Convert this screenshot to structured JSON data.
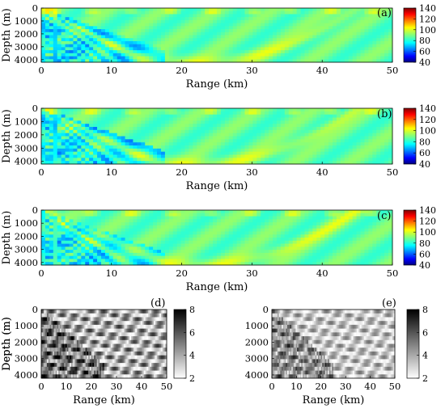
{
  "chart_data": [
    {
      "type": "heatmap",
      "panel_label": "(a)",
      "xlabel": "Range (km)",
      "ylabel": "Depth (m)",
      "xlim": [
        0,
        50
      ],
      "ylim": [
        0,
        4200
      ],
      "x_ticks": [
        0,
        10,
        20,
        30,
        40,
        50
      ],
      "y_ticks": [
        0,
        1000,
        2000,
        3000,
        4000
      ],
      "colorbar": {
        "colormap": "jet",
        "range": [
          40,
          140
        ],
        "ticks": [
          40,
          60,
          80,
          100,
          120,
          140
        ]
      }
    },
    {
      "type": "heatmap",
      "panel_label": "(b)",
      "xlabel": "Range (km)",
      "ylabel": "Depth (m)",
      "xlim": [
        0,
        50
      ],
      "ylim": [
        0,
        4200
      ],
      "x_ticks": [
        0,
        10,
        20,
        30,
        40,
        50
      ],
      "y_ticks": [
        0,
        1000,
        2000,
        3000,
        4000
      ],
      "colorbar": {
        "colormap": "jet",
        "range": [
          40,
          140
        ],
        "ticks": [
          40,
          60,
          80,
          100,
          120,
          140
        ]
      }
    },
    {
      "type": "heatmap",
      "panel_label": "(c)",
      "xlabel": "Range (km)",
      "ylabel": "Depth (m)",
      "xlim": [
        0,
        50
      ],
      "ylim": [
        0,
        4200
      ],
      "x_ticks": [
        0,
        10,
        20,
        30,
        40,
        50
      ],
      "y_ticks": [
        0,
        1000,
        2000,
        3000,
        4000
      ],
      "colorbar": {
        "colormap": "jet",
        "range": [
          40,
          140
        ],
        "ticks": [
          40,
          60,
          80,
          100,
          120,
          140
        ]
      }
    },
    {
      "type": "heatmap",
      "panel_label": "(d)",
      "xlabel": "Range (km)",
      "ylabel": "Depth (m)",
      "xlim": [
        0,
        50
      ],
      "ylim": [
        0,
        4200
      ],
      "x_ticks": [
        0,
        10,
        20,
        30,
        40,
        50
      ],
      "y_ticks": [
        0,
        1000,
        2000,
        3000,
        4000
      ],
      "colorbar": {
        "colormap": "gray-reversed",
        "range": [
          2,
          8
        ],
        "ticks": [
          2,
          4,
          6,
          8
        ]
      }
    },
    {
      "type": "heatmap",
      "panel_label": "(e)",
      "xlabel": "Range (km)",
      "ylabel": "Depth (m)",
      "xlim": [
        0,
        50
      ],
      "ylim": [
        0,
        4200
      ],
      "x_ticks": [
        0,
        10,
        20,
        30,
        40,
        50
      ],
      "y_ticks": [
        0,
        1000,
        2000,
        3000,
        4000
      ],
      "colorbar": {
        "colormap": "gray-reversed",
        "range": [
          2,
          8
        ],
        "ticks": [
          2,
          4,
          6,
          8
        ]
      }
    }
  ]
}
